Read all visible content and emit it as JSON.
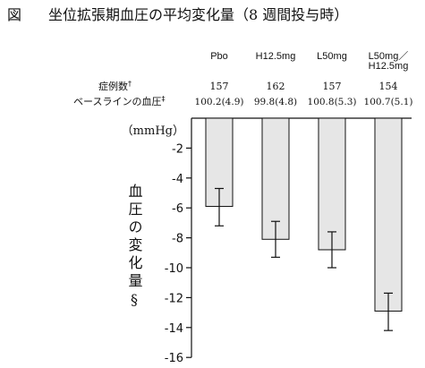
{
  "figure": {
    "label": "図",
    "title": "坐位拡張期血圧の平均変化量（8 週間投与時）"
  },
  "table": {
    "row1_label": "症例数",
    "row1_mark": "†",
    "row2_label": "ベースラインの血圧",
    "row2_mark": "‡"
  },
  "chart_data": {
    "type": "bar",
    "categories": [
      "Pbo",
      "H12.5mg",
      "L50mg",
      "L50mg／H12.5mg"
    ],
    "category_lines": [
      [
        "Pbo"
      ],
      [
        "H12.5mg"
      ],
      [
        "L50mg"
      ],
      [
        "L50mg／",
        "H12.5mg"
      ]
    ],
    "n": [
      "157",
      "162",
      "157",
      "154"
    ],
    "baseline": [
      "100.2(4.9)",
      "99.8(4.8)",
      "100.8(5.3)",
      "100.7(5.1)"
    ],
    "values": [
      -5.9,
      -8.1,
      -8.8,
      -12.9
    ],
    "error_low": [
      -7.2,
      -9.3,
      -10.0,
      -14.2
    ],
    "error_high": [
      -4.7,
      -6.9,
      -7.6,
      -11.7
    ],
    "ylabel": "血圧の変化量§",
    "unit": "（mmHg）",
    "ylim": [
      -16,
      0
    ],
    "yticks": [
      "-2",
      "-4",
      "-6",
      "-8",
      "-10",
      "-12",
      "-14",
      "-16"
    ],
    "bar_color": "#e6e6e6"
  }
}
